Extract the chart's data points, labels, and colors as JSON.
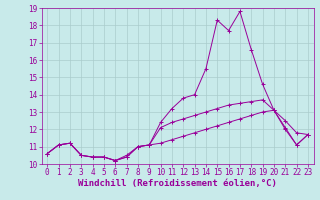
{
  "x": [
    0,
    1,
    2,
    3,
    4,
    5,
    6,
    7,
    8,
    9,
    10,
    11,
    12,
    13,
    14,
    15,
    16,
    17,
    18,
    19,
    20,
    21,
    22,
    23
  ],
  "line1": [
    10.6,
    11.1,
    11.2,
    10.5,
    10.4,
    10.4,
    10.2,
    10.4,
    11.0,
    11.1,
    12.4,
    13.2,
    13.8,
    14.0,
    15.5,
    18.3,
    17.7,
    18.8,
    16.6,
    14.6,
    13.1,
    12.0,
    11.1,
    11.7
  ],
  "line2": [
    10.6,
    11.1,
    11.2,
    10.5,
    10.4,
    10.4,
    10.2,
    10.4,
    11.0,
    11.1,
    12.1,
    12.4,
    12.6,
    12.8,
    13.0,
    13.2,
    13.4,
    13.5,
    13.6,
    13.7,
    13.1,
    12.5,
    11.8,
    11.7
  ],
  "line3": [
    10.6,
    11.1,
    11.2,
    10.5,
    10.4,
    10.4,
    10.2,
    10.5,
    11.0,
    11.1,
    11.2,
    11.4,
    11.6,
    11.8,
    12.0,
    12.2,
    12.4,
    12.6,
    12.8,
    13.0,
    13.1,
    12.1,
    11.1,
    11.7
  ],
  "line_color": "#990099",
  "bg_color": "#c8eaea",
  "grid_color": "#aacccc",
  "ylim": [
    10,
    19
  ],
  "yticks": [
    10,
    11,
    12,
    13,
    14,
    15,
    16,
    17,
    18,
    19
  ],
  "xticks": [
    0,
    1,
    2,
    3,
    4,
    5,
    6,
    7,
    8,
    9,
    10,
    11,
    12,
    13,
    14,
    15,
    16,
    17,
    18,
    19,
    20,
    21,
    22,
    23
  ],
  "xlabel": "Windchill (Refroidissement éolien,°C)",
  "xlabel_fontsize": 6.5,
  "tick_fontsize": 5.5,
  "marker": "+"
}
